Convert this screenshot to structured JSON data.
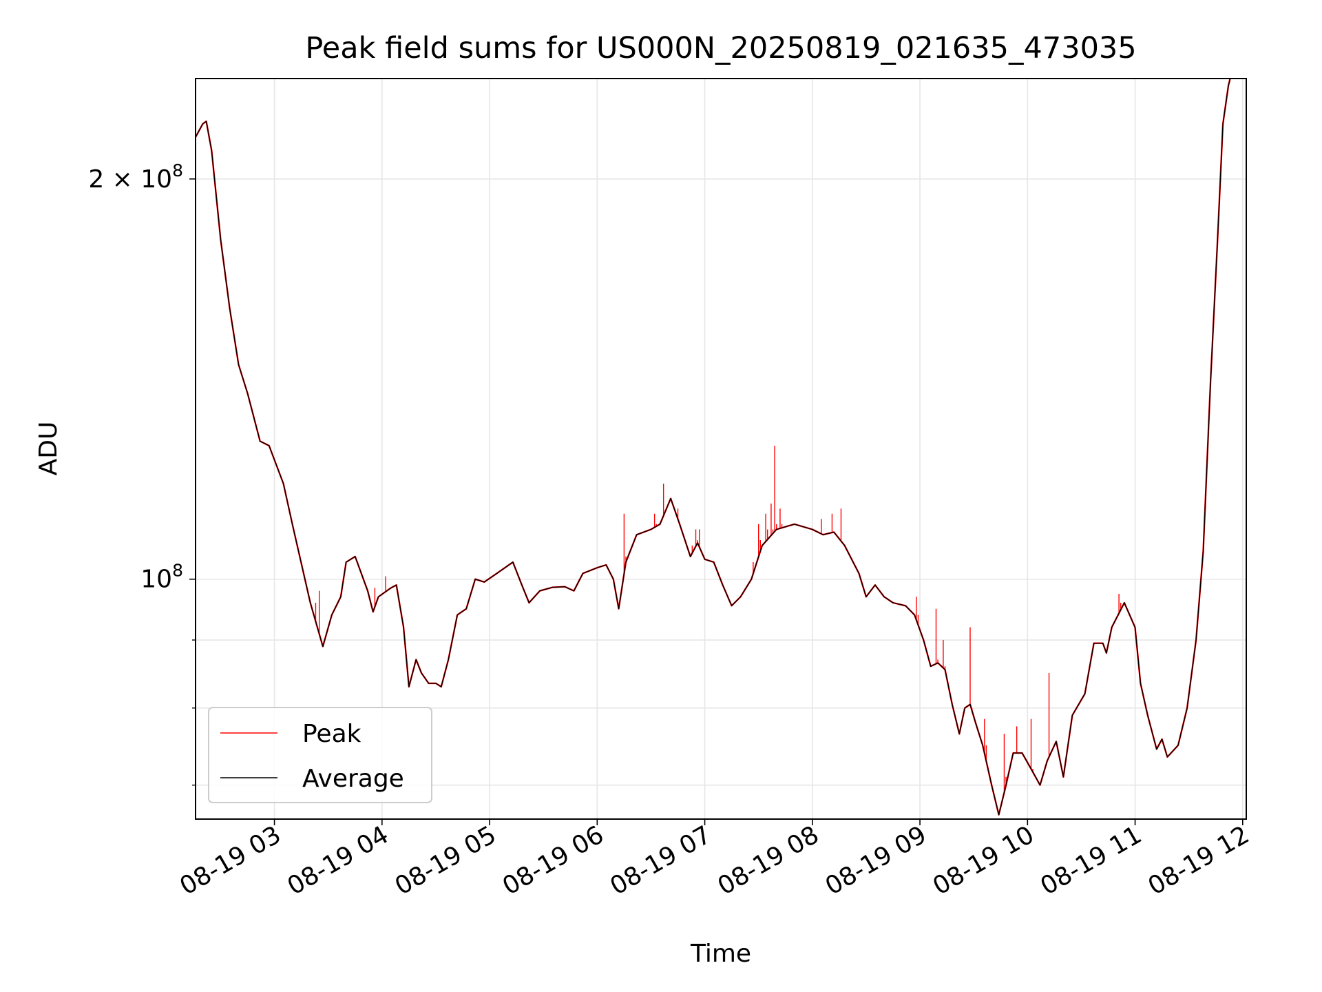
{
  "chart_data": {
    "type": "line",
    "title": "Peak field sums for US000N_20250819_021635_473035",
    "xlabel": "Time",
    "ylabel": "ADU",
    "y_scale": "log",
    "grid": true,
    "legend_position": "lower left",
    "xlim": [
      "2025-08-19 02:16",
      "2025-08-19 12:02"
    ],
    "ylim": [
      66000000,
      238000000
    ],
    "x_ticks": [
      {
        "t": "2025-08-19 03:00",
        "label": "08-19 03"
      },
      {
        "t": "2025-08-19 04:00",
        "label": "08-19 04"
      },
      {
        "t": "2025-08-19 05:00",
        "label": "08-19 05"
      },
      {
        "t": "2025-08-19 06:00",
        "label": "08-19 06"
      },
      {
        "t": "2025-08-19 07:00",
        "label": "08-19 07"
      },
      {
        "t": "2025-08-19 08:00",
        "label": "08-19 08"
      },
      {
        "t": "2025-08-19 09:00",
        "label": "08-19 09"
      },
      {
        "t": "2025-08-19 10:00",
        "label": "08-19 10"
      },
      {
        "t": "2025-08-19 11:00",
        "label": "08-19 11"
      },
      {
        "t": "2025-08-19 12:00",
        "label": "08-19 12"
      }
    ],
    "y_major_ticks": [
      {
        "value": 100000000,
        "base": "10",
        "exp": "8",
        "mult": ""
      },
      {
        "value": 200000000,
        "base": "10",
        "exp": "8",
        "mult": "2 × "
      }
    ],
    "y_minor_ticks": [
      70000000,
      80000000,
      90000000
    ],
    "series": [
      {
        "name": "Average",
        "color": "#000000",
        "points": [
          [
            "2025-08-19 02:16",
            215000000
          ],
          [
            "2025-08-19 02:20",
            220000000
          ],
          [
            "2025-08-19 02:22",
            221000000
          ],
          [
            "2025-08-19 02:25",
            210000000
          ],
          [
            "2025-08-19 02:30",
            180000000
          ],
          [
            "2025-08-19 02:35",
            160000000
          ],
          [
            "2025-08-19 02:40",
            145000000
          ],
          [
            "2025-08-19 02:45",
            138000000
          ],
          [
            "2025-08-19 02:52",
            127000000
          ],
          [
            "2025-08-19 02:57",
            126000000
          ],
          [
            "2025-08-19 03:05",
            118000000
          ],
          [
            "2025-08-19 03:10",
            110000000
          ],
          [
            "2025-08-19 03:20",
            96000000
          ],
          [
            "2025-08-19 03:27",
            89000000
          ],
          [
            "2025-08-19 03:32",
            94000000
          ],
          [
            "2025-08-19 03:37",
            97000000
          ],
          [
            "2025-08-19 03:40",
            103000000
          ],
          [
            "2025-08-19 03:45",
            104000000
          ],
          [
            "2025-08-19 03:52",
            98000000
          ],
          [
            "2025-08-19 03:55",
            94500000
          ],
          [
            "2025-08-19 03:58",
            97000000
          ],
          [
            "2025-08-19 04:05",
            98500000
          ],
          [
            "2025-08-19 04:08",
            99000000
          ],
          [
            "2025-08-19 04:12",
            92000000
          ],
          [
            "2025-08-19 04:15",
            83000000
          ],
          [
            "2025-08-19 04:19",
            87000000
          ],
          [
            "2025-08-19 04:22",
            85000000
          ],
          [
            "2025-08-19 04:26",
            83500000
          ],
          [
            "2025-08-19 04:30",
            83500000
          ],
          [
            "2025-08-19 04:33",
            83000000
          ],
          [
            "2025-08-19 04:37",
            87000000
          ],
          [
            "2025-08-19 04:42",
            94000000
          ],
          [
            "2025-08-19 04:47",
            95000000
          ],
          [
            "2025-08-19 04:52",
            100000000
          ],
          [
            "2025-08-19 04:57",
            99500000
          ],
          [
            "2025-08-19 05:04",
            101000000
          ],
          [
            "2025-08-19 05:13",
            103000000
          ],
          [
            "2025-08-19 05:18",
            99000000
          ],
          [
            "2025-08-19 05:22",
            96000000
          ],
          [
            "2025-08-19 05:28",
            98000000
          ],
          [
            "2025-08-19 05:35",
            98600000
          ],
          [
            "2025-08-19 05:42",
            98700000
          ],
          [
            "2025-08-19 05:47",
            98000000
          ],
          [
            "2025-08-19 05:52",
            101000000
          ],
          [
            "2025-08-19 06:00",
            102000000
          ],
          [
            "2025-08-19 06:05",
            102500000
          ],
          [
            "2025-08-19 06:09",
            100000000
          ],
          [
            "2025-08-19 06:12",
            95000000
          ],
          [
            "2025-08-19 06:16",
            103000000
          ],
          [
            "2025-08-19 06:22",
            108000000
          ],
          [
            "2025-08-19 06:30",
            109000000
          ],
          [
            "2025-08-19 06:35",
            110000000
          ],
          [
            "2025-08-19 06:41",
            115000000
          ],
          [
            "2025-08-19 06:46",
            110000000
          ],
          [
            "2025-08-19 06:52",
            104000000
          ],
          [
            "2025-08-19 06:56",
            106500000
          ],
          [
            "2025-08-19 07:00",
            103500000
          ],
          [
            "2025-08-19 07:05",
            103000000
          ],
          [
            "2025-08-19 07:10",
            99000000
          ],
          [
            "2025-08-19 07:15",
            95500000
          ],
          [
            "2025-08-19 07:20",
            97000000
          ],
          [
            "2025-08-19 07:26",
            100000000
          ],
          [
            "2025-08-19 07:32",
            106000000
          ],
          [
            "2025-08-19 07:40",
            109000000
          ],
          [
            "2025-08-19 07:50",
            110000000
          ],
          [
            "2025-08-19 08:00",
            109000000
          ],
          [
            "2025-08-19 08:06",
            108000000
          ],
          [
            "2025-08-19 08:12",
            108500000
          ],
          [
            "2025-08-19 08:18",
            106000000
          ],
          [
            "2025-08-19 08:26",
            101000000
          ],
          [
            "2025-08-19 08:30",
            97000000
          ],
          [
            "2025-08-19 08:35",
            99000000
          ],
          [
            "2025-08-19 08:40",
            97000000
          ],
          [
            "2025-08-19 08:45",
            96000000
          ],
          [
            "2025-08-19 08:52",
            95500000
          ],
          [
            "2025-08-19 08:57",
            94000000
          ],
          [
            "2025-08-19 09:02",
            90000000
          ],
          [
            "2025-08-19 09:06",
            86000000
          ],
          [
            "2025-08-19 09:10",
            86500000
          ],
          [
            "2025-08-19 09:14",
            85500000
          ],
          [
            "2025-08-19 09:18",
            80500000
          ],
          [
            "2025-08-19 09:22",
            76500000
          ],
          [
            "2025-08-19 09:25",
            80000000
          ],
          [
            "2025-08-19 09:28",
            80500000
          ],
          [
            "2025-08-19 09:31",
            78000000
          ],
          [
            "2025-08-19 09:35",
            75000000
          ],
          [
            "2025-08-19 09:40",
            70000000
          ],
          [
            "2025-08-19 09:44",
            66500000
          ],
          [
            "2025-08-19 09:48",
            70000000
          ],
          [
            "2025-08-19 09:52",
            74000000
          ],
          [
            "2025-08-19 09:57",
            74000000
          ],
          [
            "2025-08-19 10:02",
            72000000
          ],
          [
            "2025-08-19 10:07",
            70000000
          ],
          [
            "2025-08-19 10:11",
            73000000
          ],
          [
            "2025-08-19 10:16",
            75500000
          ],
          [
            "2025-08-19 10:20",
            71000000
          ],
          [
            "2025-08-19 10:25",
            79000000
          ],
          [
            "2025-08-19 10:32",
            82000000
          ],
          [
            "2025-08-19 10:37",
            89500000
          ],
          [
            "2025-08-19 10:42",
            89500000
          ],
          [
            "2025-08-19 10:44",
            88000000
          ],
          [
            "2025-08-19 10:47",
            92000000
          ],
          [
            "2025-08-19 10:54",
            96000000
          ],
          [
            "2025-08-19 11:00",
            92000000
          ],
          [
            "2025-08-19 11:03",
            83500000
          ],
          [
            "2025-08-19 11:07",
            79000000
          ],
          [
            "2025-08-19 11:12",
            74500000
          ],
          [
            "2025-08-19 11:15",
            75800000
          ],
          [
            "2025-08-19 11:18",
            73500000
          ],
          [
            "2025-08-19 11:24",
            75000000
          ],
          [
            "2025-08-19 11:29",
            80000000
          ],
          [
            "2025-08-19 11:34",
            90000000
          ],
          [
            "2025-08-19 11:38",
            105000000
          ],
          [
            "2025-08-19 11:42",
            140000000
          ],
          [
            "2025-08-19 11:46",
            180000000
          ],
          [
            "2025-08-19 11:49",
            220000000
          ],
          [
            "2025-08-19 11:52",
            235000000
          ],
          [
            "2025-08-19 11:53",
            238000000
          ]
        ]
      },
      {
        "name": "Peak",
        "color": "#ff0000",
        "points": [
          [
            "2025-08-19 03:22",
            93000000
          ],
          [
            "2025-08-19 03:23",
            96000000
          ],
          [
            "2025-08-19 03:24",
            92000000
          ],
          [
            "2025-08-19 03:25",
            98000000
          ],
          [
            "2025-08-19 03:25",
            91000000
          ],
          [
            "2025-08-19 03:56",
            98500000
          ],
          [
            "2025-08-19 03:56",
            95000000
          ],
          [
            "2025-08-19 04:02",
            100500000
          ],
          [
            "2025-08-19 04:03",
            98000000
          ],
          [
            "2025-08-19 06:15",
            112000000
          ],
          [
            "2025-08-19 06:16",
            104000000
          ],
          [
            "2025-08-19 06:32",
            112000000
          ],
          [
            "2025-08-19 06:33",
            110000000
          ],
          [
            "2025-08-19 06:37",
            118000000
          ],
          [
            "2025-08-19 06:38",
            112000000
          ],
          [
            "2025-08-19 06:45",
            113000000
          ],
          [
            "2025-08-19 06:46",
            110000000
          ],
          [
            "2025-08-19 06:53",
            106000000
          ],
          [
            "2025-08-19 06:55",
            109000000
          ],
          [
            "2025-08-19 06:56",
            107000000
          ],
          [
            "2025-08-19 06:57",
            109000000
          ],
          [
            "2025-08-19 06:58",
            104000000
          ],
          [
            "2025-08-19 07:27",
            103000000
          ],
          [
            "2025-08-19 07:30",
            110000000
          ],
          [
            "2025-08-19 07:31",
            107000000
          ],
          [
            "2025-08-19 07:34",
            112000000
          ],
          [
            "2025-08-19 07:35",
            109000000
          ],
          [
            "2025-08-19 07:37",
            114000000
          ],
          [
            "2025-08-19 07:38",
            109000000
          ],
          [
            "2025-08-19 07:39",
            126000000
          ],
          [
            "2025-08-19 07:40",
            110000000
          ],
          [
            "2025-08-19 07:42",
            113000000
          ],
          [
            "2025-08-19 07:43",
            110000000
          ],
          [
            "2025-08-19 08:05",
            111000000
          ],
          [
            "2025-08-19 08:06",
            108000000
          ],
          [
            "2025-08-19 08:11",
            112000000
          ],
          [
            "2025-08-19 08:12",
            108500000
          ],
          [
            "2025-08-19 08:16",
            113000000
          ],
          [
            "2025-08-19 08:17",
            106500000
          ],
          [
            "2025-08-19 08:58",
            97000000
          ],
          [
            "2025-08-19 08:59",
            94000000
          ],
          [
            "2025-08-19 09:09",
            95000000
          ],
          [
            "2025-08-19 09:10",
            87000000
          ],
          [
            "2025-08-19 09:13",
            90000000
          ],
          [
            "2025-08-19 09:14",
            86000000
          ],
          [
            "2025-08-19 09:28",
            92000000
          ],
          [
            "2025-08-19 09:29",
            80000000
          ],
          [
            "2025-08-19 09:36",
            78500000
          ],
          [
            "2025-08-19 09:37",
            75000000
          ],
          [
            "2025-08-19 09:47",
            76500000
          ],
          [
            "2025-08-19 09:48",
            71000000
          ],
          [
            "2025-08-19 09:54",
            77500000
          ],
          [
            "2025-08-19 09:55",
            74000000
          ],
          [
            "2025-08-19 10:02",
            78500000
          ],
          [
            "2025-08-19 10:03",
            72000000
          ],
          [
            "2025-08-19 10:12",
            85000000
          ],
          [
            "2025-08-19 10:13",
            73000000
          ],
          [
            "2025-08-19 10:51",
            97500000
          ],
          [
            "2025-08-19 10:52",
            96000000
          ]
        ]
      }
    ]
  }
}
